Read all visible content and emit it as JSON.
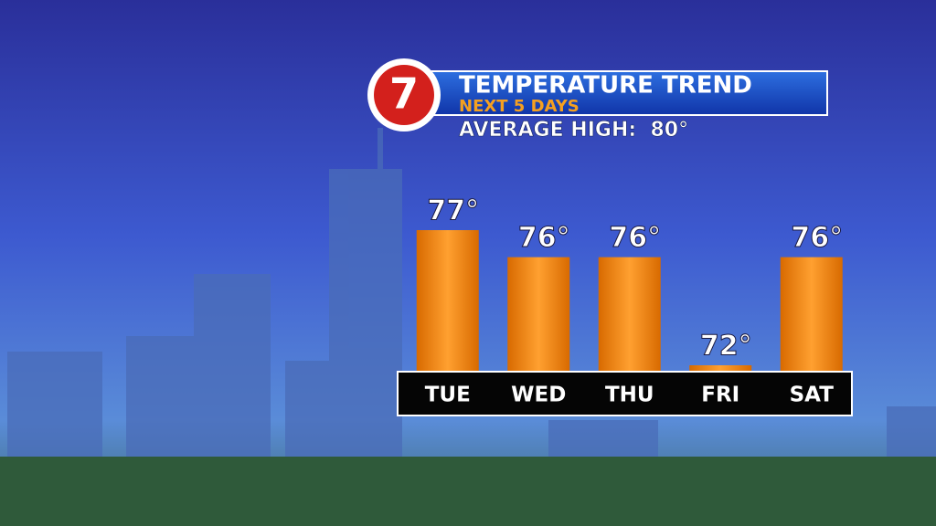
{
  "chart_data": {
    "type": "bar",
    "logo": "7",
    "title": "TEMPERATURE TREND",
    "subtitle": "NEXT 5 DAYS",
    "annotation": "AVERAGE HIGH:  80°",
    "categories": [
      "TUE",
      "WED",
      "THU",
      "FRI",
      "SAT"
    ],
    "values": [
      77,
      76,
      76,
      72,
      76
    ],
    "value_labels": [
      "77°",
      "76°",
      "76°",
      "72°",
      "76°"
    ],
    "color": "#e8800c"
  }
}
